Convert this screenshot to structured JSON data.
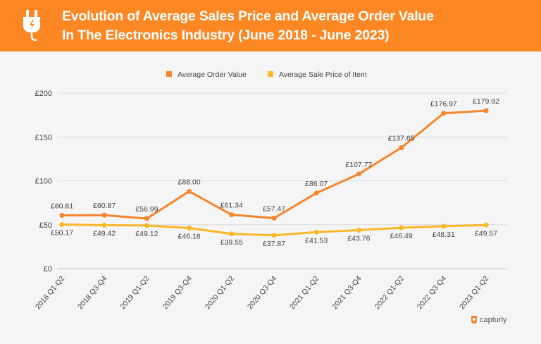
{
  "header": {
    "title_line1": "Evolution of Average Sales Price and Average Order Value",
    "title_line2": "In The Electronics Industry (June 2018 - June 2023)",
    "icon": "electric-plug-icon"
  },
  "brand": {
    "name": "capturly",
    "icon": "capturly-logo-icon"
  },
  "chart_data": {
    "type": "line",
    "title": "Evolution of Average Sales Price and Average Order Value In The Electronics Industry (June 2018 - June 2023)",
    "categories": [
      "2018 Q1-Q2",
      "2018 Q3-Q4",
      "2019 Q1-Q2",
      "2019 Q3-Q4",
      "2020 Q1-Q2",
      "2020 Q3-Q4",
      "2021 Q1-Q2",
      "2021 Q3-Q4",
      "2022 Q1-Q2",
      "2022 Q3-Q4",
      "2023 Q1-Q2"
    ],
    "series": [
      {
        "name": "Average Order Value",
        "color": "#f7852e",
        "values": [
          60.61,
          60.87,
          56.99,
          88.0,
          61.34,
          57.47,
          86.07,
          107.77,
          137.65,
          176.97,
          179.92
        ],
        "labels": [
          "£60.61",
          "£60.87",
          "£56.99",
          "£88.00",
          "£61.34",
          "£57.47",
          "£86.07",
          "£107.77",
          "£137.65",
          "£176.97",
          "£179.92"
        ]
      },
      {
        "name": "Average Sale Price of Item",
        "color": "#fbb829",
        "values": [
          50.17,
          49.42,
          49.12,
          46.18,
          39.55,
          37.87,
          41.53,
          43.76,
          46.49,
          48.31,
          49.57
        ],
        "labels": [
          "£50.17",
          "£49.42",
          "£49.12",
          "£46.18",
          "£39.55",
          "£37.87",
          "£41.53",
          "£43.76",
          "£46.49",
          "£48.31",
          "£49.57"
        ]
      }
    ],
    "yticks": [
      0,
      50,
      100,
      150,
      200
    ],
    "ytick_labels": [
      "£0",
      "£50",
      "£100",
      "£150",
      "£200"
    ],
    "ylim": [
      0,
      200
    ],
    "grid": true,
    "legend": "top-center"
  }
}
